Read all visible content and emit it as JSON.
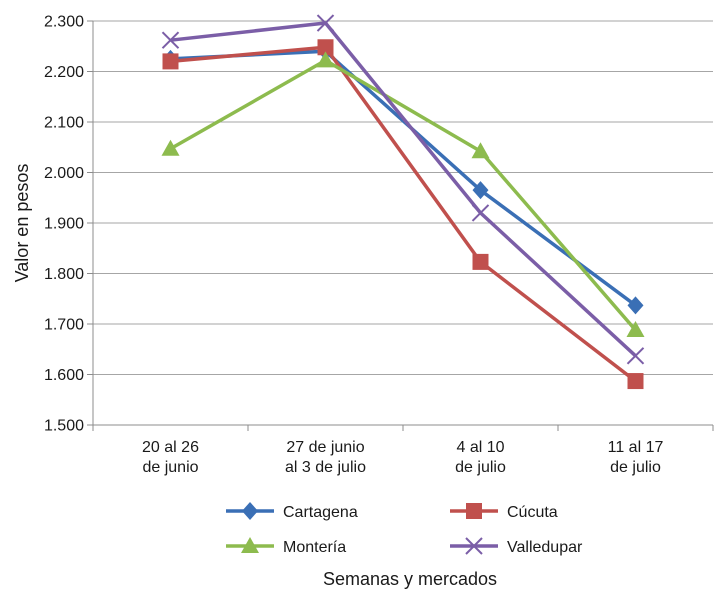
{
  "chart_data": {
    "type": "line",
    "categories": [
      [
        "20 al 26",
        "de junio"
      ],
      [
        "27 de junio",
        "al 3 de julio"
      ],
      [
        "4 al 10",
        "de julio"
      ],
      [
        "11 al 17",
        "de julio"
      ]
    ],
    "ylabel": "Valor en pesos",
    "xlabel": "Semanas y mercados",
    "ylim": [
      1500,
      2300
    ],
    "yticks": [
      1500,
      1600,
      1700,
      1800,
      1900,
      2000,
      2100,
      2200,
      2300
    ],
    "ytick_labels": [
      "1.500",
      "1.600",
      "1.700",
      "1.800",
      "1.900",
      "2.000",
      "2.100",
      "2.200",
      "2.300"
    ],
    "grid": "horizontal",
    "legend_position": "bottom",
    "series": [
      {
        "name": "Cartagena",
        "values": [
          2225,
          2240,
          1965,
          1737
        ],
        "color": "#3a6fb5",
        "marker": "diamond"
      },
      {
        "name": "Cúcuta",
        "values": [
          2220,
          2248,
          1823,
          1587
        ],
        "color": "#c0504d",
        "marker": "square"
      },
      {
        "name": "Montería",
        "values": [
          2047,
          2222,
          2042,
          1688
        ],
        "color": "#8dbb4e",
        "marker": "triangle"
      },
      {
        "name": "Valledupar",
        "values": [
          2262,
          2296,
          1920,
          1637
        ],
        "color": "#7b5ea7",
        "marker": "x"
      }
    ]
  }
}
